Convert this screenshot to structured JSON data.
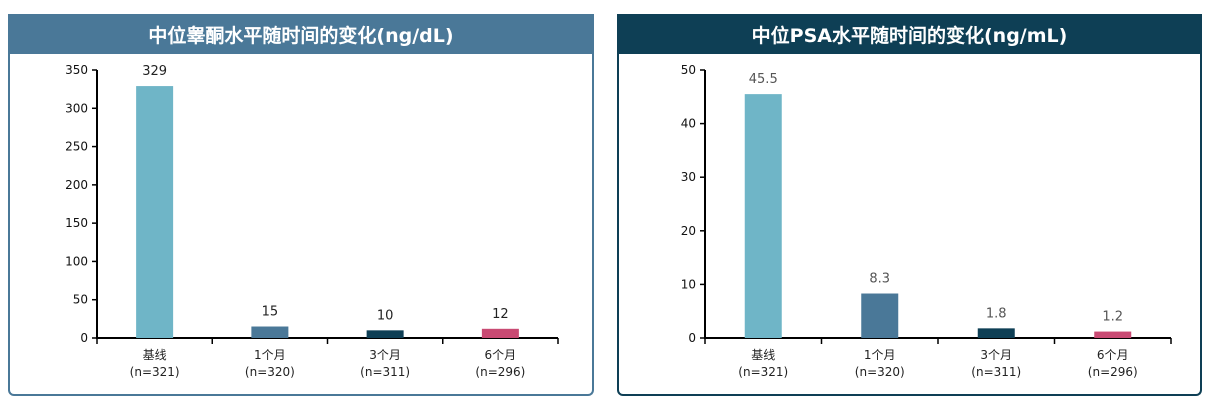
{
  "chart_data": [
    {
      "type": "bar",
      "title": "中位睾酮水平随时间的变化(ng/dL)",
      "categories": [
        "基线",
        "1个月",
        "3个月",
        "6个月"
      ],
      "sublabels": [
        "(n=321)",
        "(n=320)",
        "(n=311)",
        "(n=296)"
      ],
      "values": [
        329,
        15,
        10,
        12
      ],
      "value_labels": [
        "329",
        "15",
        "10",
        "12"
      ],
      "ylim": [
        0,
        350
      ],
      "yticks": [
        0,
        50,
        100,
        150,
        200,
        250,
        300,
        350
      ],
      "xlabel": "",
      "ylabel": "",
      "label_color": "#222222"
    },
    {
      "type": "bar",
      "title": "中位PSA水平随时间的变化(ng/mL)",
      "categories": [
        "基线",
        "1个月",
        "3个月",
        "6个月"
      ],
      "sublabels": [
        "(n=321)",
        "(n=320)",
        "(n=311)",
        "(n=296)"
      ],
      "values": [
        45.5,
        8.3,
        1.8,
        1.2
      ],
      "value_labels": [
        "45.5",
        "8.3",
        "1.8",
        "1.2"
      ],
      "ylim": [
        0,
        50
      ],
      "yticks": [
        0,
        10,
        20,
        30,
        40,
        50
      ],
      "xlabel": "",
      "ylabel": "",
      "label_color": "#555555"
    }
  ],
  "colors": {
    "bars": [
      "#6fb5c7",
      "#4a7898",
      "#0e3f55",
      "#c94a73"
    ]
  }
}
